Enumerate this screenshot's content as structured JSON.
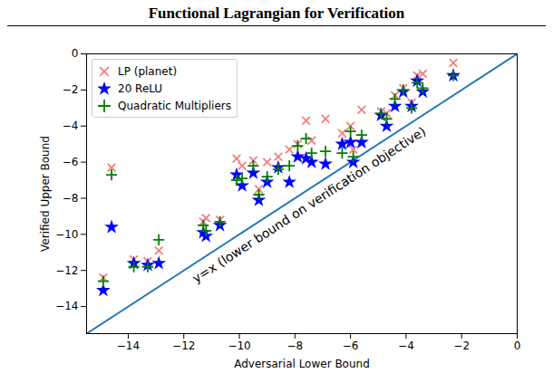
{
  "chart_data": {
    "type": "scatter",
    "title": "Functional Lagrangian for Verification",
    "x_label": "Adversarial Lower Bound",
    "y_label": "Verified Upper Bound",
    "xlim": [
      -15.5,
      0
    ],
    "ylim": [
      -15.5,
      0
    ],
    "xticks": [
      -14,
      -12,
      -10,
      -8,
      -6,
      -4,
      -2,
      0
    ],
    "yticks": [
      -14,
      -12,
      -10,
      -8,
      -6,
      -4,
      -2,
      0
    ],
    "grid": false,
    "legend": "upper left",
    "x": [
      -14.9,
      -14.6,
      -13.8,
      -13.3,
      -12.9,
      -11.3,
      -11.2,
      -10.7,
      -10.1,
      -9.9,
      -9.5,
      -9.3,
      -9.0,
      -8.6,
      -8.2,
      -7.9,
      -7.6,
      -7.4,
      -6.9,
      -6.3,
      -6.0,
      -5.9,
      -5.6,
      -4.9,
      -4.7,
      -4.4,
      -4.1,
      -3.8,
      -3.6,
      -3.4,
      -2.3
    ],
    "series": [
      {
        "name": "LP (planet)",
        "color": "#f08080",
        "marker": "x",
        "values": [
          -12.4,
          -6.3,
          -11.4,
          -11.5,
          -10.9,
          -9.3,
          -9.1,
          -9.2,
          -5.8,
          -6.2,
          -5.9,
          -7.5,
          -6.0,
          -5.7,
          -5.3,
          -5.0,
          -3.7,
          -4.8,
          -3.6,
          -4.4,
          -4.0,
          -5.3,
          -3.1,
          -3.2,
          -3.3,
          -2.3,
          -1.9,
          -2.7,
          -1.2,
          -1.1,
          -0.5
        ]
      },
      {
        "name": "20 ReLU",
        "color": "#0000ff",
        "marker": "star",
        "values": [
          -13.1,
          -9.6,
          -11.6,
          -11.7,
          -11.6,
          -9.9,
          -10.1,
          -9.5,
          -6.7,
          -7.3,
          -6.6,
          -8.1,
          -7.1,
          -6.3,
          -7.1,
          -5.7,
          -5.8,
          -6.0,
          -6.1,
          -5.0,
          -4.9,
          -6.0,
          -4.9,
          -3.4,
          -4.0,
          -2.9,
          -2.1,
          -2.9,
          -1.5,
          -2.1,
          -1.2
        ]
      },
      {
        "name": "Quadratic Multipliers",
        "color": "#008000",
        "marker": "plus",
        "values": [
          -12.6,
          -6.7,
          -11.8,
          -11.8,
          -10.3,
          -9.5,
          -9.8,
          -9.3,
          -7.0,
          -6.9,
          -6.2,
          -7.8,
          -6.8,
          -6.4,
          -6.2,
          -5.1,
          -4.7,
          -5.5,
          -5.4,
          -5.5,
          -4.3,
          -5.7,
          -4.5,
          -3.3,
          -3.6,
          -2.5,
          -2.0,
          -3.0,
          -1.6,
          -1.9,
          -1.2
        ]
      }
    ],
    "reference_line": {
      "text": "y=x (lower bound on verification objective)",
      "color": "#1f77b4",
      "x": [
        -15.5,
        0
      ],
      "values": [
        -15.5,
        0
      ]
    }
  }
}
